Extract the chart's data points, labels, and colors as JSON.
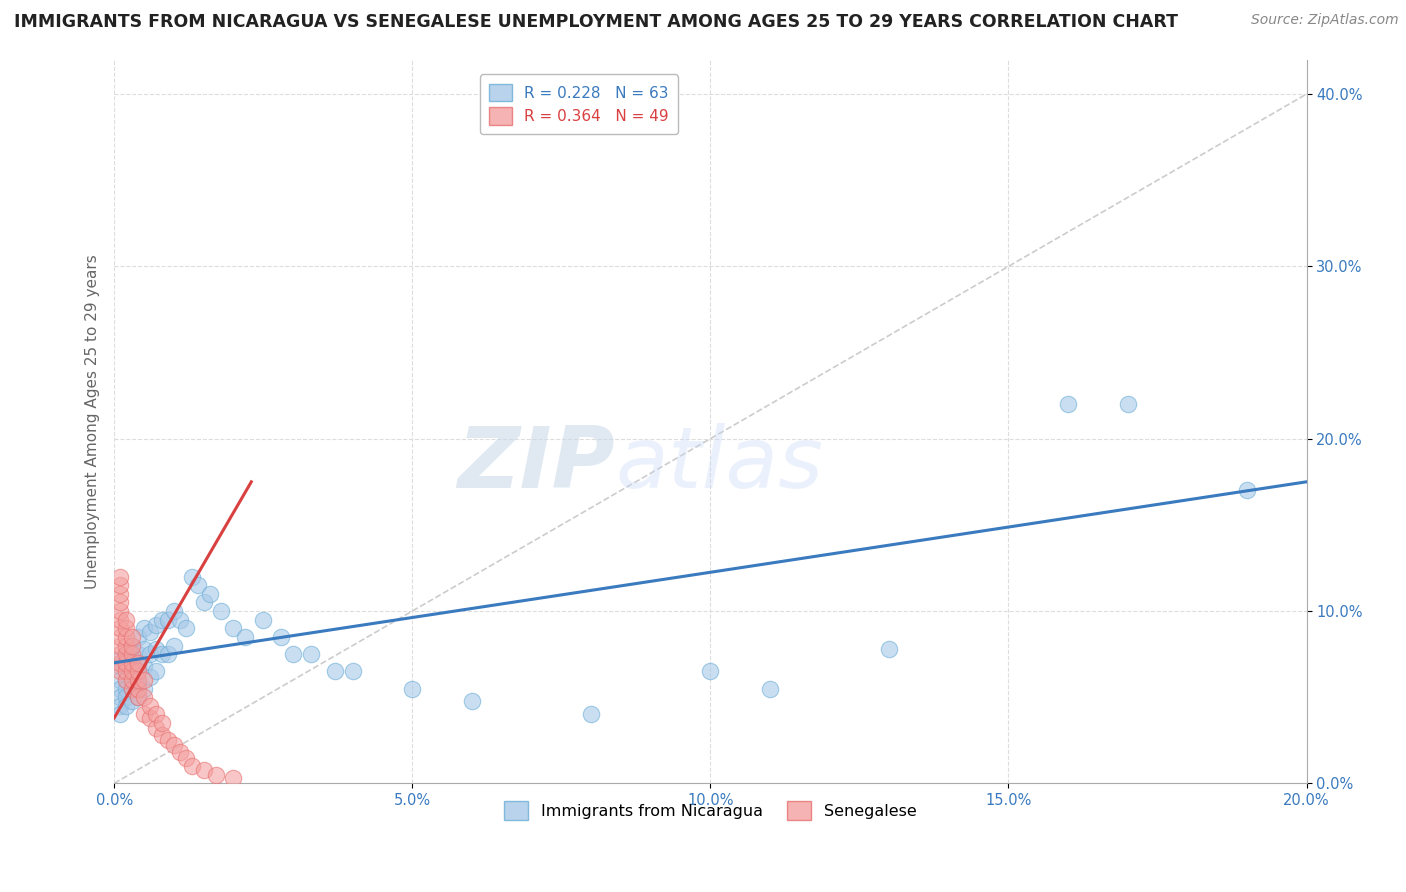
{
  "title": "IMMIGRANTS FROM NICARAGUA VS SENEGALESE UNEMPLOYMENT AMONG AGES 25 TO 29 YEARS CORRELATION CHART",
  "source": "Source: ZipAtlas.com",
  "xlim": [
    0.0,
    0.2
  ],
  "ylim": [
    0.0,
    0.42
  ],
  "ylabel": "Unemployment Among Ages 25 to 29 years",
  "legend_entries": [
    {
      "label": "Immigrants from Nicaragua",
      "R": "0.228",
      "N": "63",
      "color": "#a8c8e8"
    },
    {
      "label": "Senegalese",
      "R": "0.364",
      "N": "49",
      "color": "#f4a0a0"
    }
  ],
  "watermark_zip": "ZIP",
  "watermark_atlas": "atlas",
  "blue_color": "#a8c8e8",
  "blue_edge_color": "#6baed6",
  "pink_color": "#f4a0a0",
  "pink_edge_color": "#e87070",
  "blue_line_color": "#3a7abf",
  "pink_line_color": "#d94040",
  "diag_line_color": "#cccccc",
  "grid_color": "#dddddd",
  "background_color": "#ffffff",
  "tick_color": "#3a7abf",
  "title_fontsize": 12.5,
  "axis_label_fontsize": 11,
  "tick_fontsize": 10.5,
  "legend_fontsize": 11,
  "source_fontsize": 10,
  "blue_scatter_x": [
    0.001,
    0.001,
    0.001,
    0.001,
    0.001,
    0.001,
    0.001,
    0.002,
    0.002,
    0.002,
    0.002,
    0.002,
    0.002,
    0.003,
    0.003,
    0.003,
    0.003,
    0.003,
    0.004,
    0.004,
    0.004,
    0.004,
    0.004,
    0.005,
    0.005,
    0.005,
    0.005,
    0.006,
    0.006,
    0.006,
    0.007,
    0.007,
    0.007,
    0.008,
    0.008,
    0.009,
    0.009,
    0.01,
    0.01,
    0.011,
    0.012,
    0.013,
    0.014,
    0.015,
    0.016,
    0.018,
    0.02,
    0.022,
    0.025,
    0.028,
    0.03,
    0.033,
    0.037,
    0.04,
    0.05,
    0.06,
    0.08,
    0.1,
    0.11,
    0.13,
    0.16,
    0.17,
    0.19
  ],
  "blue_scatter_y": [
    0.068,
    0.072,
    0.06,
    0.055,
    0.05,
    0.045,
    0.04,
    0.075,
    0.068,
    0.06,
    0.055,
    0.05,
    0.045,
    0.08,
    0.07,
    0.065,
    0.055,
    0.048,
    0.085,
    0.075,
    0.068,
    0.058,
    0.05,
    0.09,
    0.078,
    0.068,
    0.055,
    0.088,
    0.075,
    0.062,
    0.092,
    0.078,
    0.065,
    0.095,
    0.075,
    0.095,
    0.075,
    0.1,
    0.08,
    0.095,
    0.09,
    0.12,
    0.115,
    0.105,
    0.11,
    0.1,
    0.09,
    0.085,
    0.095,
    0.085,
    0.075,
    0.075,
    0.065,
    0.065,
    0.055,
    0.048,
    0.04,
    0.065,
    0.055,
    0.078,
    0.22,
    0.22,
    0.17
  ],
  "pink_scatter_x": [
    0.001,
    0.001,
    0.001,
    0.001,
    0.001,
    0.001,
    0.001,
    0.001,
    0.001,
    0.001,
    0.001,
    0.001,
    0.002,
    0.002,
    0.002,
    0.002,
    0.002,
    0.002,
    0.002,
    0.002,
    0.003,
    0.003,
    0.003,
    0.003,
    0.003,
    0.003,
    0.003,
    0.004,
    0.004,
    0.004,
    0.004,
    0.004,
    0.005,
    0.005,
    0.005,
    0.006,
    0.006,
    0.007,
    0.007,
    0.008,
    0.008,
    0.009,
    0.01,
    0.011,
    0.012,
    0.013,
    0.015,
    0.017,
    0.02
  ],
  "pink_scatter_y": [
    0.065,
    0.07,
    0.075,
    0.08,
    0.085,
    0.09,
    0.095,
    0.1,
    0.105,
    0.11,
    0.115,
    0.12,
    0.06,
    0.065,
    0.07,
    0.075,
    0.08,
    0.085,
    0.09,
    0.095,
    0.055,
    0.06,
    0.065,
    0.07,
    0.075,
    0.08,
    0.085,
    0.05,
    0.055,
    0.06,
    0.065,
    0.07,
    0.04,
    0.05,
    0.06,
    0.038,
    0.045,
    0.032,
    0.04,
    0.028,
    0.035,
    0.025,
    0.022,
    0.018,
    0.015,
    0.01,
    0.008,
    0.005,
    0.003
  ],
  "blue_line_x": [
    0.0,
    0.2
  ],
  "blue_line_y": [
    0.07,
    0.175
  ],
  "pink_line_x": [
    0.0,
    0.023
  ],
  "pink_line_y": [
    0.038,
    0.175
  ],
  "diag_line_x": [
    0.0,
    0.2
  ],
  "diag_line_y": [
    0.0,
    0.4
  ]
}
